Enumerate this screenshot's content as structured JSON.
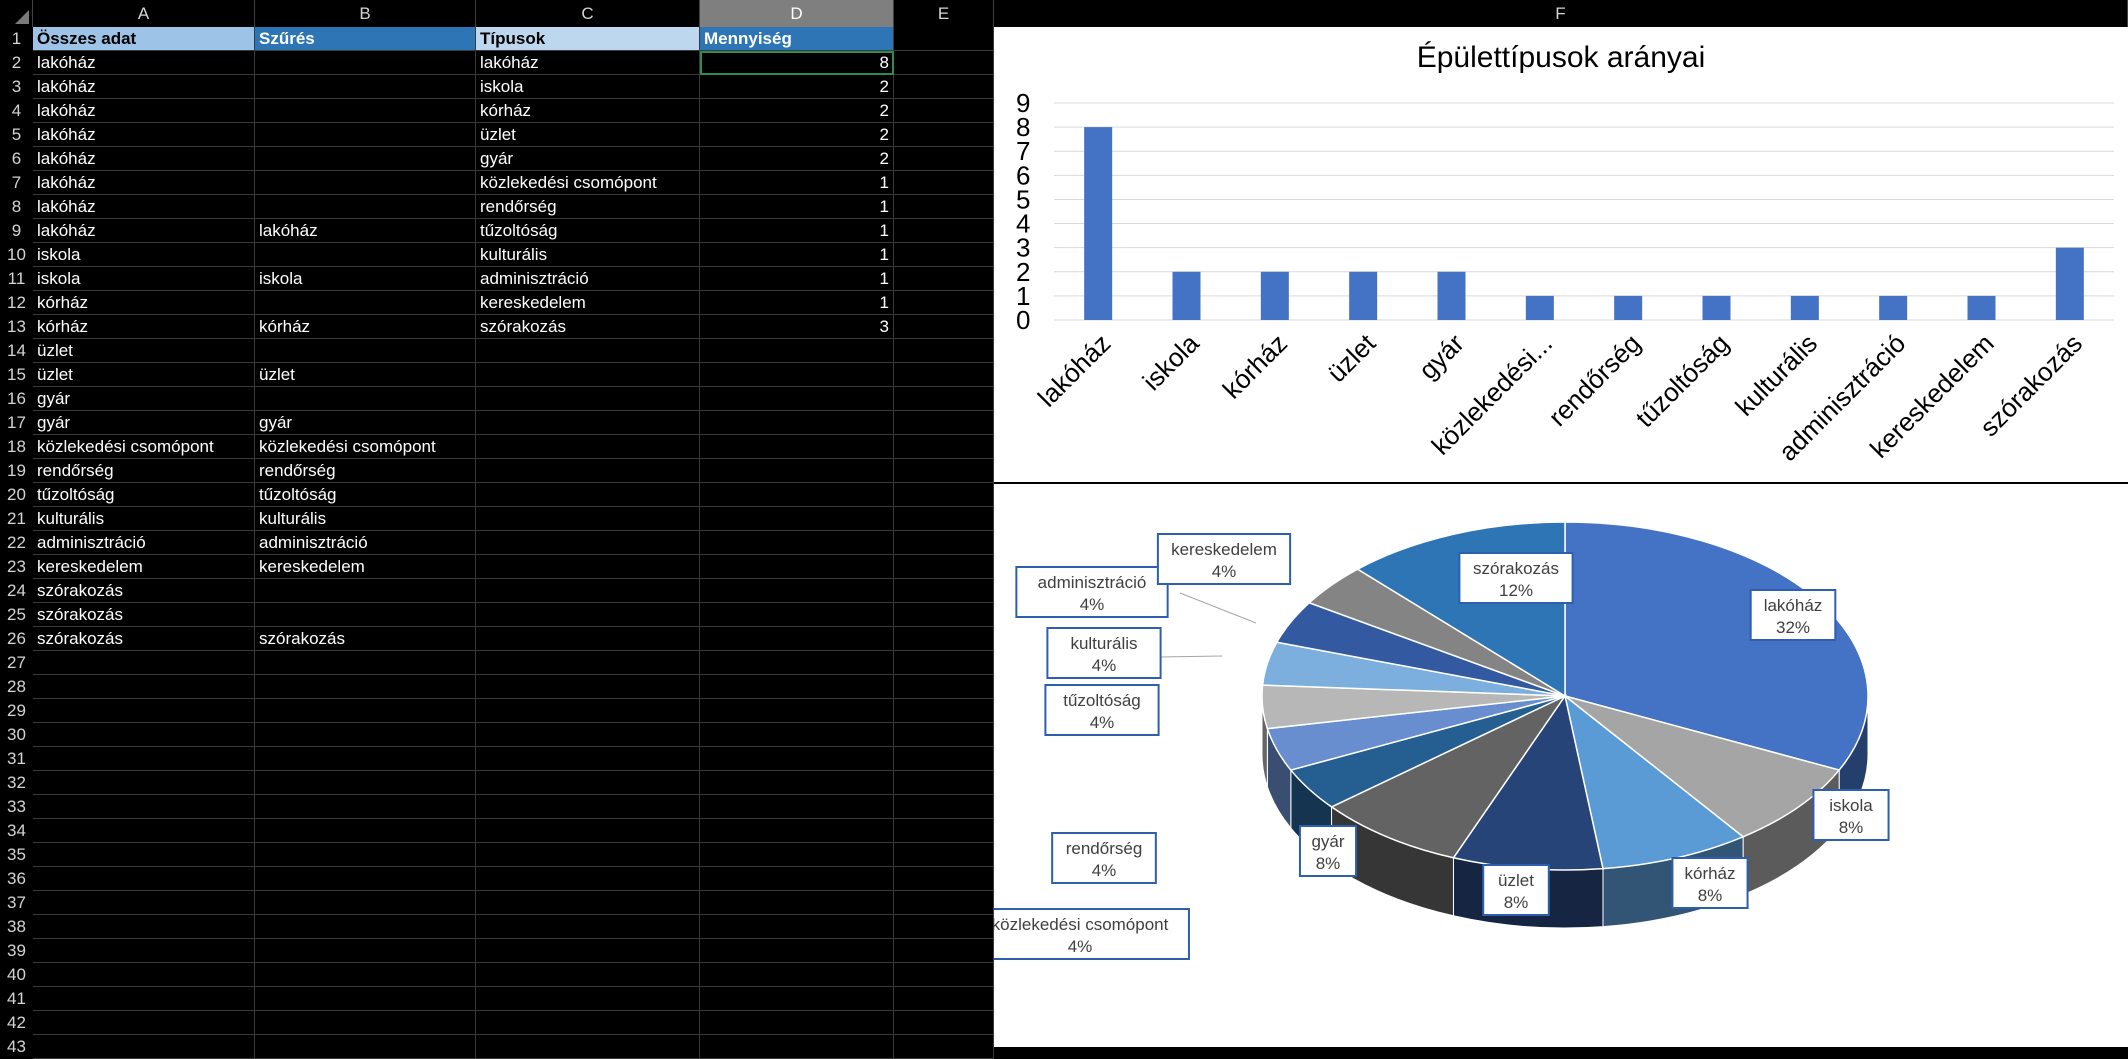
{
  "columns": [
    "A",
    "B",
    "C",
    "D",
    "E",
    "F"
  ],
  "selected_column": "D",
  "rows_visible": [
    "1",
    "2",
    "3",
    "4",
    "5",
    "6",
    "7",
    "8",
    "9",
    "10",
    "11",
    "12",
    "13",
    "14",
    "15",
    "16",
    "17",
    "18",
    "19",
    "20",
    "21",
    "22",
    "23",
    "24",
    "25",
    "26",
    "27",
    "28",
    "29",
    "30",
    "31",
    "32",
    "33",
    "34",
    "35",
    "36",
    "37",
    "38",
    "39",
    "40",
    "41",
    "42",
    "43"
  ],
  "headers": {
    "a": "Összes adat",
    "b": "Szűrés",
    "c": "Típusok",
    "d": "Mennyiség"
  },
  "col_a": [
    "lakóház",
    "lakóház",
    "lakóház",
    "lakóház",
    "lakóház",
    "lakóház",
    "lakóház",
    "lakóház",
    "iskola",
    "iskola",
    "kórház",
    "kórház",
    "üzlet",
    "üzlet",
    "gyár",
    "gyár",
    "közlekedési csomópont",
    "rendőrség",
    "tűzoltóság",
    "kulturális",
    "adminisztráció",
    "kereskedelem",
    "szórakozás",
    "szórakozás",
    "szórakozás"
  ],
  "col_b": [
    "",
    "",
    "",
    "",
    "",
    "",
    "",
    "lakóház",
    "",
    "iskola",
    "",
    "kórház",
    "",
    "üzlet",
    "",
    "gyár",
    "közlekedési csomópont",
    "rendőrség",
    "tűzoltóság",
    "kulturális",
    "adminisztráció",
    "kereskedelem",
    "",
    "",
    "szórakozás"
  ],
  "col_c": [
    "lakóház",
    "iskola",
    "kórház",
    "üzlet",
    "gyár",
    "közlekedési csomópont",
    "rendőrség",
    "tűzoltóság",
    "kulturális",
    "adminisztráció",
    "kereskedelem",
    "szórakozás"
  ],
  "col_d": [
    "8",
    "2",
    "2",
    "2",
    "2",
    "1",
    "1",
    "1",
    "1",
    "1",
    "1",
    "3"
  ],
  "chart_data": [
    {
      "type": "bar",
      "title": "Épülettípusok arányai",
      "categories": [
        "lakóház",
        "iskola",
        "kórház",
        "üzlet",
        "gyár",
        "közlekedési...",
        "rendőrség",
        "tűzoltóság",
        "kulturális",
        "adminisztráció",
        "kereskedelem",
        "szórakozás"
      ],
      "values": [
        8,
        2,
        2,
        2,
        2,
        1,
        1,
        1,
        1,
        1,
        1,
        3
      ],
      "ylim": [
        0,
        9
      ],
      "yticks": [
        "0",
        "1",
        "2",
        "3",
        "4",
        "5",
        "6",
        "7",
        "8",
        "9"
      ],
      "grid": true,
      "bar_color": "#4472c4"
    },
    {
      "type": "pie",
      "categories": [
        "lakóház",
        "iskola",
        "kórház",
        "üzlet",
        "gyár",
        "közlekedési csomópont",
        "rendőrség",
        "tűzoltóság",
        "kulturális",
        "adminisztráció",
        "kereskedelem",
        "szórakozás"
      ],
      "values": [
        8,
        2,
        2,
        2,
        2,
        1,
        1,
        1,
        1,
        1,
        1,
        3
      ],
      "labels": [
        "32%",
        "8%",
        "8%",
        "8%",
        "8%",
        "4%",
        "4%",
        "4%",
        "4%",
        "4%",
        "4%",
        "12%"
      ],
      "colors": [
        "#4472c4",
        "#a5a5a5",
        "#5b9bd5",
        "#264478",
        "#636363",
        "#255e91",
        "#698ed0",
        "#b7b7b7",
        "#7cafdd",
        "#335aa1",
        "#848484",
        "#2e75b6"
      ]
    }
  ]
}
